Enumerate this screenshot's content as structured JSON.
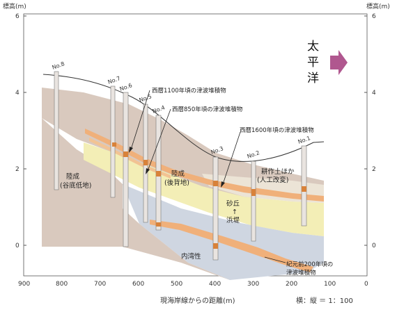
{
  "axes": {
    "y_left_label": "標高(m)",
    "y_right_label": "標高(m)",
    "x_label": "現海岸線からの距離(m)",
    "scale_note": "横：縦 ＝ 1：100",
    "y_ticks": [
      "6",
      "4",
      "2",
      "0"
    ],
    "x_ticks": [
      "900",
      "800",
      "700",
      "600",
      "500",
      "400",
      "300",
      "200",
      "100",
      "0"
    ]
  },
  "ocean": {
    "chars": [
      "太",
      "平",
      "洋"
    ],
    "arrow_color": "#b0578f"
  },
  "boreholes": [
    "No.8",
    "No.7",
    "No.6",
    "No.5",
    "No.4",
    "No.3",
    "No.2",
    "No.1"
  ],
  "layers": {
    "tsunami_1100": "西暦1100年頃の津波堆積物",
    "tsunami_850": "西暦850年頃の津波堆積物",
    "tsunami_1600": "西暦1600年頃の津波堆積物",
    "bc200_line1": "紀元前200年頃の",
    "bc200_line2": "津波堆積物",
    "valley_line1": "陸成",
    "valley_line2": "(谷底低地)",
    "backmarsh_line1": "陸成",
    "backmarsh_line2": "(後背地)",
    "artificial_line1": "耕作土ほか",
    "artificial_line2": "(人工改変)",
    "dune_line1": "砂丘",
    "dune_arrow": "↑",
    "dune_line2": "浜堤",
    "bay": "内湾性"
  },
  "colors": {
    "terrestrial": "#d9c9be",
    "tsunami": "#f0b07a",
    "tsunami_dark": "#d8823a",
    "sand": "#f3eeb6",
    "bay": "#cfd6e1",
    "topsoil": "#ece4d6"
  }
}
